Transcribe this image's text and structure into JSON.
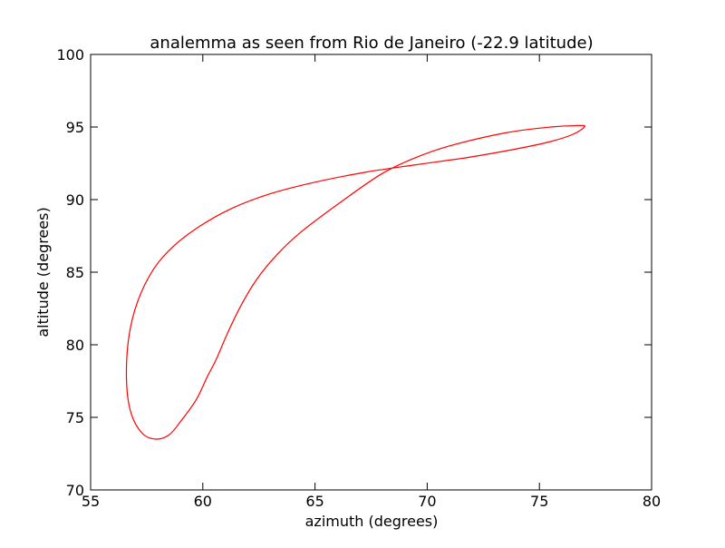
{
  "chart_data": {
    "type": "line",
    "title": "analemma as seen from Rio de Janeiro (-22.9 latitude)",
    "xlabel": "azimuth (degrees)",
    "ylabel": "altitude (degrees)",
    "xlim": [
      55,
      80
    ],
    "ylim": [
      70,
      100
    ],
    "xticks": [
      55,
      60,
      65,
      70,
      75,
      80
    ],
    "yticks": [
      70,
      75,
      80,
      85,
      90,
      95,
      100
    ],
    "grid": false,
    "legend": "none",
    "series": [
      {
        "color": "#ff0000",
        "x": [
          64.4,
          63.3,
          62.4,
          61.7,
          61.1,
          60.6,
          60.2,
          59.7,
          59.0,
          58.5,
          57.9,
          57.3,
          56.8,
          56.6,
          56.7,
          57.1,
          57.8,
          58.7,
          59.9,
          61.3,
          63.0,
          65.0,
          67.3,
          69.5,
          71.8,
          74.0,
          75.5,
          76.5,
          77.0,
          76.8,
          75.5,
          73.5,
          71.0,
          69.5,
          68.0,
          66.3,
          64.4
        ],
        "y": [
          87.8,
          86.2,
          84.5,
          82.7,
          80.8,
          79.0,
          77.8,
          76.2,
          74.7,
          73.8,
          73.5,
          73.9,
          75.3,
          77.5,
          80.5,
          83.0,
          85.2,
          86.8,
          88.2,
          89.4,
          90.4,
          91.2,
          91.9,
          92.4,
          92.9,
          93.5,
          94.0,
          94.5,
          95.0,
          95.1,
          95.0,
          94.6,
          93.7,
          92.9,
          91.8,
          90.0,
          87.8
        ]
      }
    ]
  }
}
